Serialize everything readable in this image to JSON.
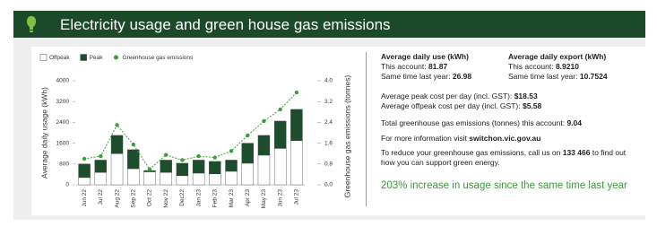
{
  "header": {
    "title": "Electricity usage and green house gas emissions"
  },
  "chart_data": {
    "type": "bar",
    "stacked": true,
    "categories": [
      "Jun 22",
      "Jul 22",
      "Aug 22",
      "Sep 22",
      "Oct 22",
      "Nov 22",
      "Dec22",
      "Jan 23",
      "Feb 23",
      "Mar 23",
      "Apr 23",
      "May 23",
      "Jun 23",
      "Jul 23"
    ],
    "series": [
      {
        "name": "Offpeak",
        "color": "#ffffff",
        "values": [
          280,
          480,
          1200,
          620,
          500,
          480,
          350,
          450,
          420,
          520,
          830,
          1140,
          1400,
          1700
        ]
      },
      {
        "name": "Peak",
        "color": "#1d4d2c",
        "values": [
          520,
          470,
          700,
          730,
          50,
          470,
          480,
          500,
          480,
          430,
          770,
          760,
          1050,
          1200
        ]
      },
      {
        "name": "Greenhouse gas emissions",
        "color": "#3aa03a",
        "type": "line",
        "axis": "y2",
        "values": [
          1.0,
          1.1,
          2.3,
          1.55,
          0.6,
          1.15,
          0.95,
          1.1,
          1.05,
          1.3,
          1.9,
          2.45,
          2.9,
          3.55
        ]
      }
    ],
    "ylabel": "Average daily usage (kWh)",
    "y2label": "Greenhouse gas emissions (tonnes)",
    "ylim": [
      0,
      4000
    ],
    "yticks": [
      0,
      800,
      1600,
      2400,
      3200,
      4000
    ],
    "y2lim": [
      0,
      4
    ],
    "y2ticks": [
      {
        "value": 0,
        "label": "0.0"
      },
      0.8,
      1.6,
      2.4,
      3.2,
      {
        "value": 4,
        "label": "4.0"
      }
    ],
    "grid": false
  },
  "summary": {
    "daily_use": {
      "heading": "Average daily use (kWh)",
      "this_label": "This account:",
      "this_value": "81.87",
      "last_label": "Same time last year:",
      "last_value": "26.98"
    },
    "daily_export": {
      "heading": "Average daily export (kWh)",
      "this_label": "This account:",
      "this_value": "8.9210",
      "last_label": "Same time last year:",
      "last_value": "10.7524"
    },
    "peak_cost": {
      "label": "Average peak cost per day (incl. GST):",
      "value": "$18.53"
    },
    "offpeak_cost": {
      "label": "Average offpeak cost per day (incl. GST):",
      "value": "$5.58"
    },
    "emissions": {
      "label": "Total greenhouse gas emissions (tonnes) this account:",
      "value": "9.04"
    },
    "info": {
      "label": "For more information visit",
      "link": "switchon.vic.gov.au"
    },
    "reduce": {
      "before": "To reduce your greenhouse gas emissions, call us on",
      "phone": "133 466",
      "after": "to find out how you can support green energy."
    },
    "increase": "203% increase in usage since the same time last year"
  }
}
